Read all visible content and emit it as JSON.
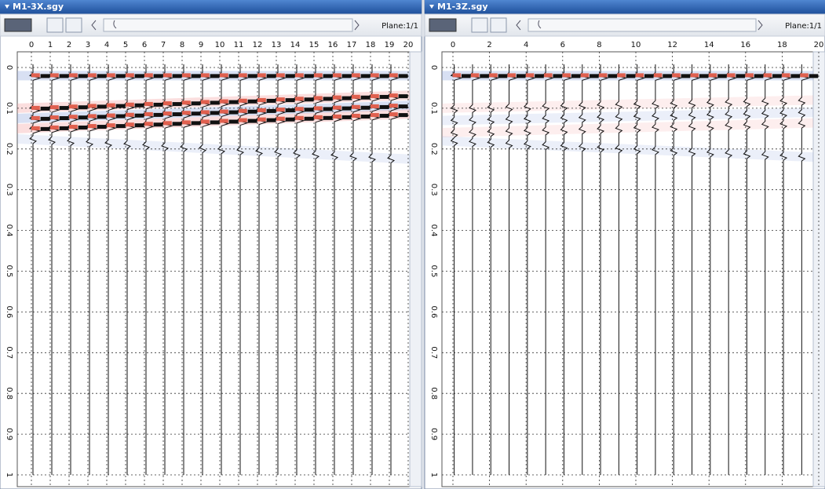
{
  "windows": [
    {
      "title": "M1-3X.sgy",
      "plane": "Plane:1/1",
      "x_ticks": [
        0,
        1,
        2,
        3,
        4,
        5,
        6,
        7,
        8,
        9,
        10,
        11,
        12,
        13,
        14,
        15,
        16,
        17,
        18,
        19,
        20
      ],
      "y_ticks": [
        0,
        0.1,
        0.2,
        0.3,
        0.4,
        0.5,
        0.6,
        0.7,
        0.8,
        0.9,
        1
      ]
    },
    {
      "title": "M1-3Z.sgy",
      "plane": "Plane:1/1",
      "x_ticks": [
        0,
        2,
        4,
        6,
        8,
        10,
        12,
        14,
        16,
        18,
        20
      ],
      "y_ticks": [
        0,
        0.1,
        0.2,
        0.3,
        0.4,
        0.5,
        0.6,
        0.7,
        0.8,
        0.9,
        1
      ]
    }
  ]
}
